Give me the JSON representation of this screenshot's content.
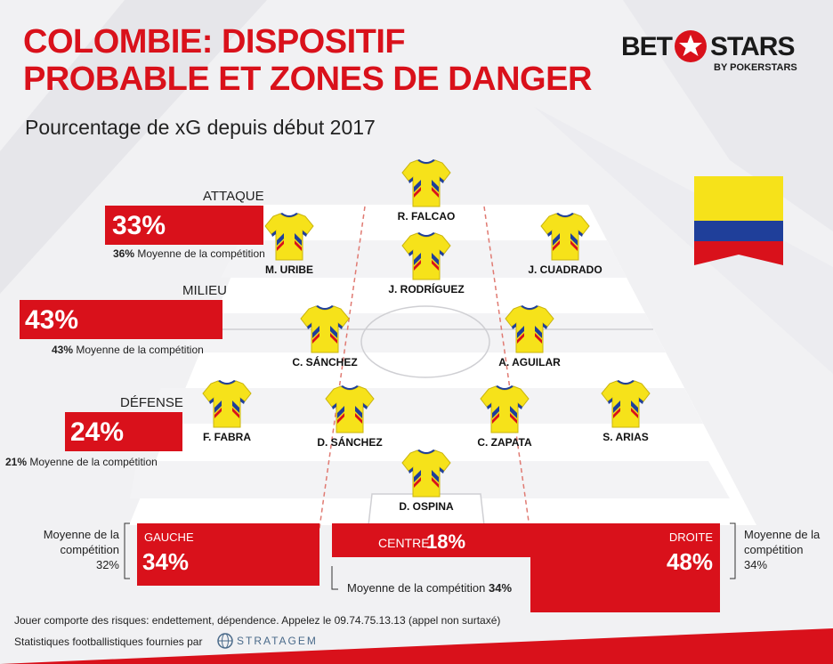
{
  "header": {
    "title_line1": "COLOMBIE: DISPOSITIF",
    "title_line2": "PROBABLE ET ZONES DE DANGER",
    "subtitle": "Pourcentage de xG depuis début 2017"
  },
  "logo": {
    "left_word": "BET",
    "right_word": "STARS",
    "byline": "BY POKERSTARS"
  },
  "zones": {
    "attaque": {
      "label": "ATTAQUE",
      "value": "33%",
      "avg_value": "36%",
      "avg_text": "Moyenne de la compétition"
    },
    "milieu": {
      "label": "MILIEU",
      "value": "43%",
      "avg_value": "43%",
      "avg_text": "Moyenne de la compétition"
    },
    "defense": {
      "label": "DÉFENSE",
      "value": "24%",
      "avg_value": "21%",
      "avg_text": "Moyenne de la compétition"
    }
  },
  "channels": {
    "gauche": {
      "label": "GAUCHE",
      "value": "34%",
      "avg_line1": "Moyenne de la",
      "avg_line2": "compétition",
      "avg_value": "32%"
    },
    "centre": {
      "label": "CENTRE",
      "value": "18%",
      "avg_text": "Moyenne de la compétition",
      "avg_value": "34%"
    },
    "droite": {
      "label": "DROITE",
      "value": "48%",
      "avg_line1": "Moyenne de la",
      "avg_line2": "compétition",
      "avg_value": "34%"
    }
  },
  "players": [
    {
      "name": "R. FALCAO"
    },
    {
      "name": "M. URIBE"
    },
    {
      "name": "J. RODRÍGUEZ"
    },
    {
      "name": "J. CUADRADO"
    },
    {
      "name": "C. SÁNCHEZ"
    },
    {
      "name": "A. AGUILAR"
    },
    {
      "name": "F. FABRA"
    },
    {
      "name": "D. SÁNCHEZ"
    },
    {
      "name": "C. ZAPATA"
    },
    {
      "name": "S. ARIAS"
    },
    {
      "name": "D. OSPINA"
    }
  ],
  "footer": {
    "disclaimer": "Jouer comporte des risques: endettement, dépendence. Appelez le 09.74.75.13.13 (appel non surtaxé)",
    "credit": "Statistiques footballistiques fournies par",
    "partner": "STRATAGEM"
  },
  "colors": {
    "red": "#d9111b",
    "jersey_yellow": "#f6e21a",
    "flag_blue": "#1f3f9a"
  }
}
